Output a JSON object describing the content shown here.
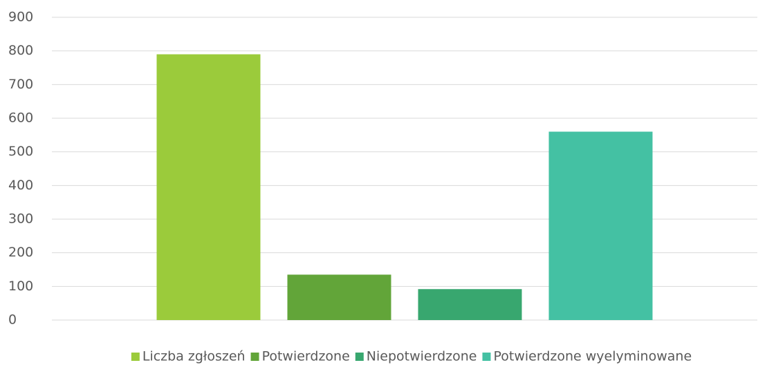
{
  "chart_data": {
    "type": "bar",
    "categories": [
      null
    ],
    "series": [
      {
        "name": "Liczba zgłoszeń",
        "color": "#9bcb3b",
        "values": [
          790
        ]
      },
      {
        "name": "Potwierdzone",
        "color": "#62a539",
        "values": [
          135
        ]
      },
      {
        "name": "Niepotwierdzone",
        "color": "#38a76f",
        "values": [
          92
        ]
      },
      {
        "name": "Potwierdzone wyelyminowane",
        "color": "#44c1a3",
        "values": [
          560
        ]
      }
    ],
    "ylim": [
      0,
      900
    ],
    "yticks": [
      0,
      100,
      200,
      300,
      400,
      500,
      600,
      700,
      800,
      900
    ],
    "grid": true,
    "legend": "bottom"
  }
}
